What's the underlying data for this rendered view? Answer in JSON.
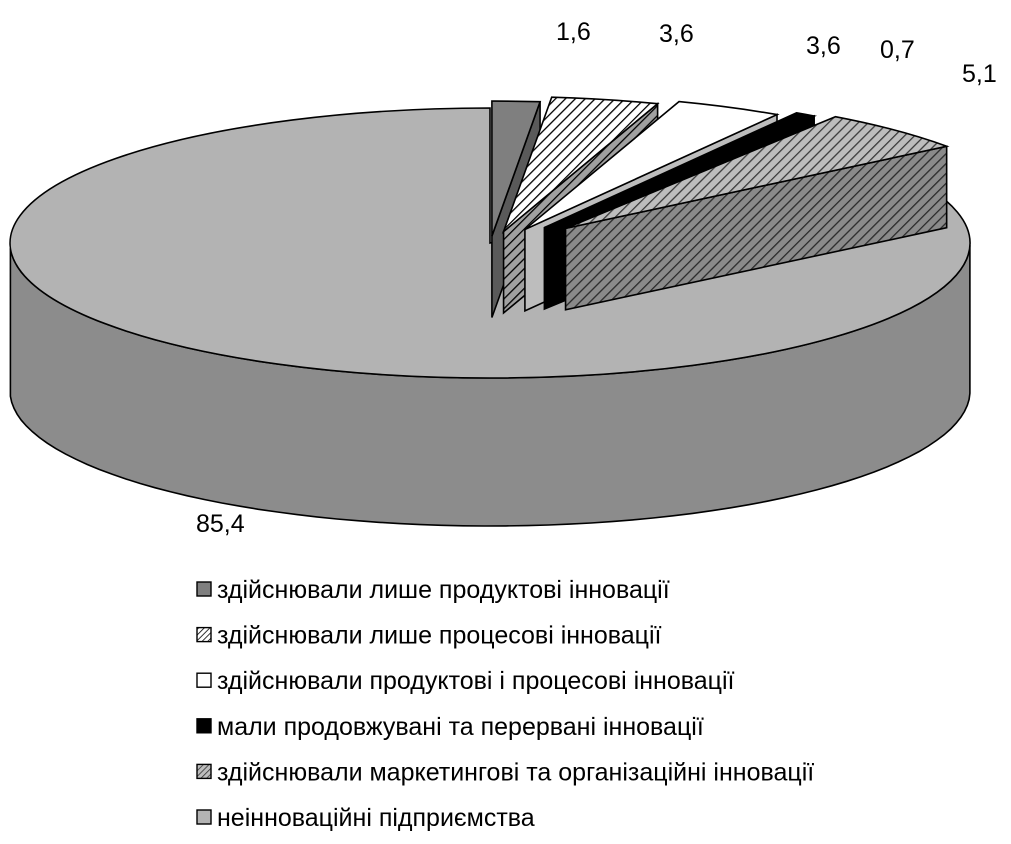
{
  "chart_data": {
    "type": "pie",
    "style": "3d-exploded",
    "title": "",
    "series": [
      {
        "label": "здійснювали лише продуктові  інновації",
        "value": 1.6,
        "value_label": "1,6",
        "fill": "darkgray"
      },
      {
        "label": "здійснювали лише процесові інновації",
        "value": 3.6,
        "value_label": "3,6",
        "fill": "diagonal-hatch-white"
      },
      {
        "label": "здійснювали продуктові і процесові інновації",
        "value": 3.6,
        "value_label": "3,6",
        "fill": "white"
      },
      {
        "label": "мали продовжувані та перервані інновації",
        "value": 0.7,
        "value_label": "0,7",
        "fill": "black"
      },
      {
        "label": "здійснювали маркетингові та організаційні інновації",
        "value": 5.1,
        "value_label": "5,1",
        "fill": "diagonal-hatch-gray"
      },
      {
        "label": "неінноваційні підприємства",
        "value": 85.4,
        "value_label": "85,4",
        "fill": "lightgray"
      }
    ],
    "colors": {
      "darkgray": "#7f7f7f",
      "lightgray": "#b3b3b3",
      "side": "#8c8c8c",
      "black": "#000000",
      "white": "#ffffff"
    },
    "legend_position": "bottom"
  }
}
